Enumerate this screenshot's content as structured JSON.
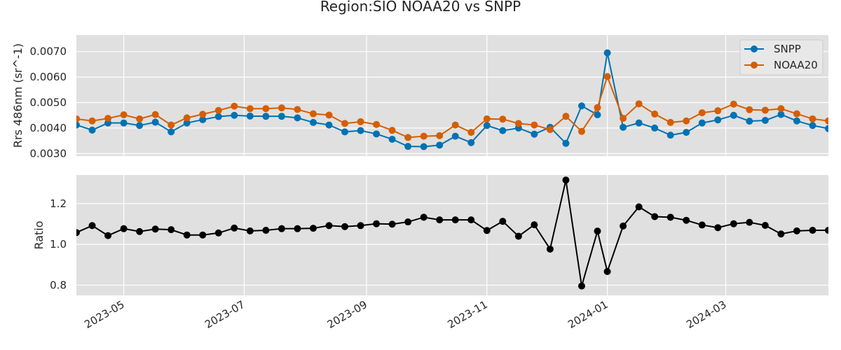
{
  "chart_data": {
    "type": "line",
    "title": "Region:SIO NOAA20 vs SNPP",
    "x": [
      "2023-04-07",
      "2023-04-15",
      "2023-04-23",
      "2023-05-01",
      "2023-05-09",
      "2023-05-17",
      "2023-05-25",
      "2023-06-02",
      "2023-06-10",
      "2023-06-18",
      "2023-06-26",
      "2023-07-04",
      "2023-07-12",
      "2023-07-20",
      "2023-07-28",
      "2023-08-05",
      "2023-08-13",
      "2023-08-21",
      "2023-08-29",
      "2023-09-06",
      "2023-09-14",
      "2023-09-22",
      "2023-09-30",
      "2023-10-08",
      "2023-10-16",
      "2023-10-24",
      "2023-11-01",
      "2023-11-09",
      "2023-11-17",
      "2023-11-25",
      "2023-12-03",
      "2023-12-11",
      "2023-12-19",
      "2023-12-27",
      "2024-01-01",
      "2024-01-09",
      "2024-01-17",
      "2024-01-25",
      "2024-02-02",
      "2024-02-10",
      "2024-02-18",
      "2024-02-26",
      "2024-03-05",
      "2024-03-13",
      "2024-03-21",
      "2024-03-29",
      "2024-04-06",
      "2024-04-14",
      "2024-04-22"
    ],
    "panels": [
      {
        "ylabel": "Rrs 486nm (sr^-1)",
        "ylim": [
          0.0029,
          0.00765
        ],
        "yticks": [
          0.003,
          0.004,
          0.005,
          0.006,
          0.007
        ],
        "ytick_labels": [
          "0.0030",
          "0.0040",
          "0.0050",
          "0.0060",
          "0.0070"
        ],
        "legend_position": "top-right",
        "series": [
          {
            "name": "SNPP",
            "color": "#0072b2",
            "values": [
              0.00412,
              0.00392,
              0.0042,
              0.0042,
              0.0041,
              0.00423,
              0.00385,
              0.0042,
              0.00433,
              0.00445,
              0.0045,
              0.00447,
              0.00446,
              0.00446,
              0.0044,
              0.00422,
              0.00412,
              0.00385,
              0.0039,
              0.00377,
              0.00356,
              0.00328,
              0.00327,
              0.00333,
              0.00368,
              0.00343,
              0.0041,
              0.0039,
              0.004,
              0.00376,
              0.00403,
              0.0034,
              0.00487,
              0.00452,
              0.00695,
              0.00403,
              0.0042,
              0.004,
              0.00372,
              0.00383,
              0.0042,
              0.00432,
              0.0045,
              0.00427,
              0.0043,
              0.00453,
              0.00428,
              0.0041,
              0.00398
            ]
          },
          {
            "name": "NOAA20",
            "color": "#d55e00",
            "values": [
              0.00436,
              0.00428,
              0.00438,
              0.00452,
              0.00436,
              0.00453,
              0.00412,
              0.0044,
              0.00454,
              0.00469,
              0.00486,
              0.00476,
              0.00476,
              0.00479,
              0.00473,
              0.00456,
              0.00451,
              0.00418,
              0.00425,
              0.00414,
              0.00391,
              0.00363,
              0.00368,
              0.0037,
              0.00412,
              0.00383,
              0.00436,
              0.00435,
              0.00418,
              0.00412,
              0.00394,
              0.00446,
              0.00387,
              0.0048,
              0.00602,
              0.00438,
              0.00495,
              0.00455,
              0.00422,
              0.00428,
              0.0046,
              0.00468,
              0.00494,
              0.00472,
              0.0047,
              0.00476,
              0.00456,
              0.00436,
              0.00428
            ]
          }
        ]
      },
      {
        "ylabel": "Ratio",
        "ylim": [
          0.75,
          1.34
        ],
        "yticks": [
          0.8,
          1.0,
          1.2
        ],
        "ytick_labels": [
          "0.8",
          "1.0",
          "1.2"
        ],
        "series": [
          {
            "color": "#000000",
            "values": [
              1.058,
              1.092,
              1.043,
              1.077,
              1.063,
              1.075,
              1.072,
              1.046,
              1.046,
              1.056,
              1.08,
              1.066,
              1.069,
              1.077,
              1.077,
              1.079,
              1.092,
              1.087,
              1.092,
              1.101,
              1.099,
              1.11,
              1.133,
              1.12,
              1.12,
              1.12,
              1.068,
              1.113,
              1.04,
              1.096,
              0.977,
              1.315,
              0.796,
              1.065,
              0.867,
              1.09,
              1.184,
              1.136,
              1.133,
              1.118,
              1.095,
              1.082,
              1.101,
              1.108,
              1.093,
              1.051,
              1.066,
              1.069,
              1.069
            ]
          }
        ]
      }
    ],
    "x_tick_labels": [
      "2023-05",
      "2023-07",
      "2023-09",
      "2023-11",
      "2024-01",
      "2024-03"
    ],
    "x_tick_dates": [
      "2023-05-01",
      "2023-07-01",
      "2023-09-01",
      "2023-11-01",
      "2024-01-01",
      "2024-03-01"
    ],
    "xlim": [
      "2023-04-07",
      "2024-04-22"
    ],
    "grid": true,
    "background_color": "#e0e0e0",
    "grid_color": "#ffffff"
  }
}
